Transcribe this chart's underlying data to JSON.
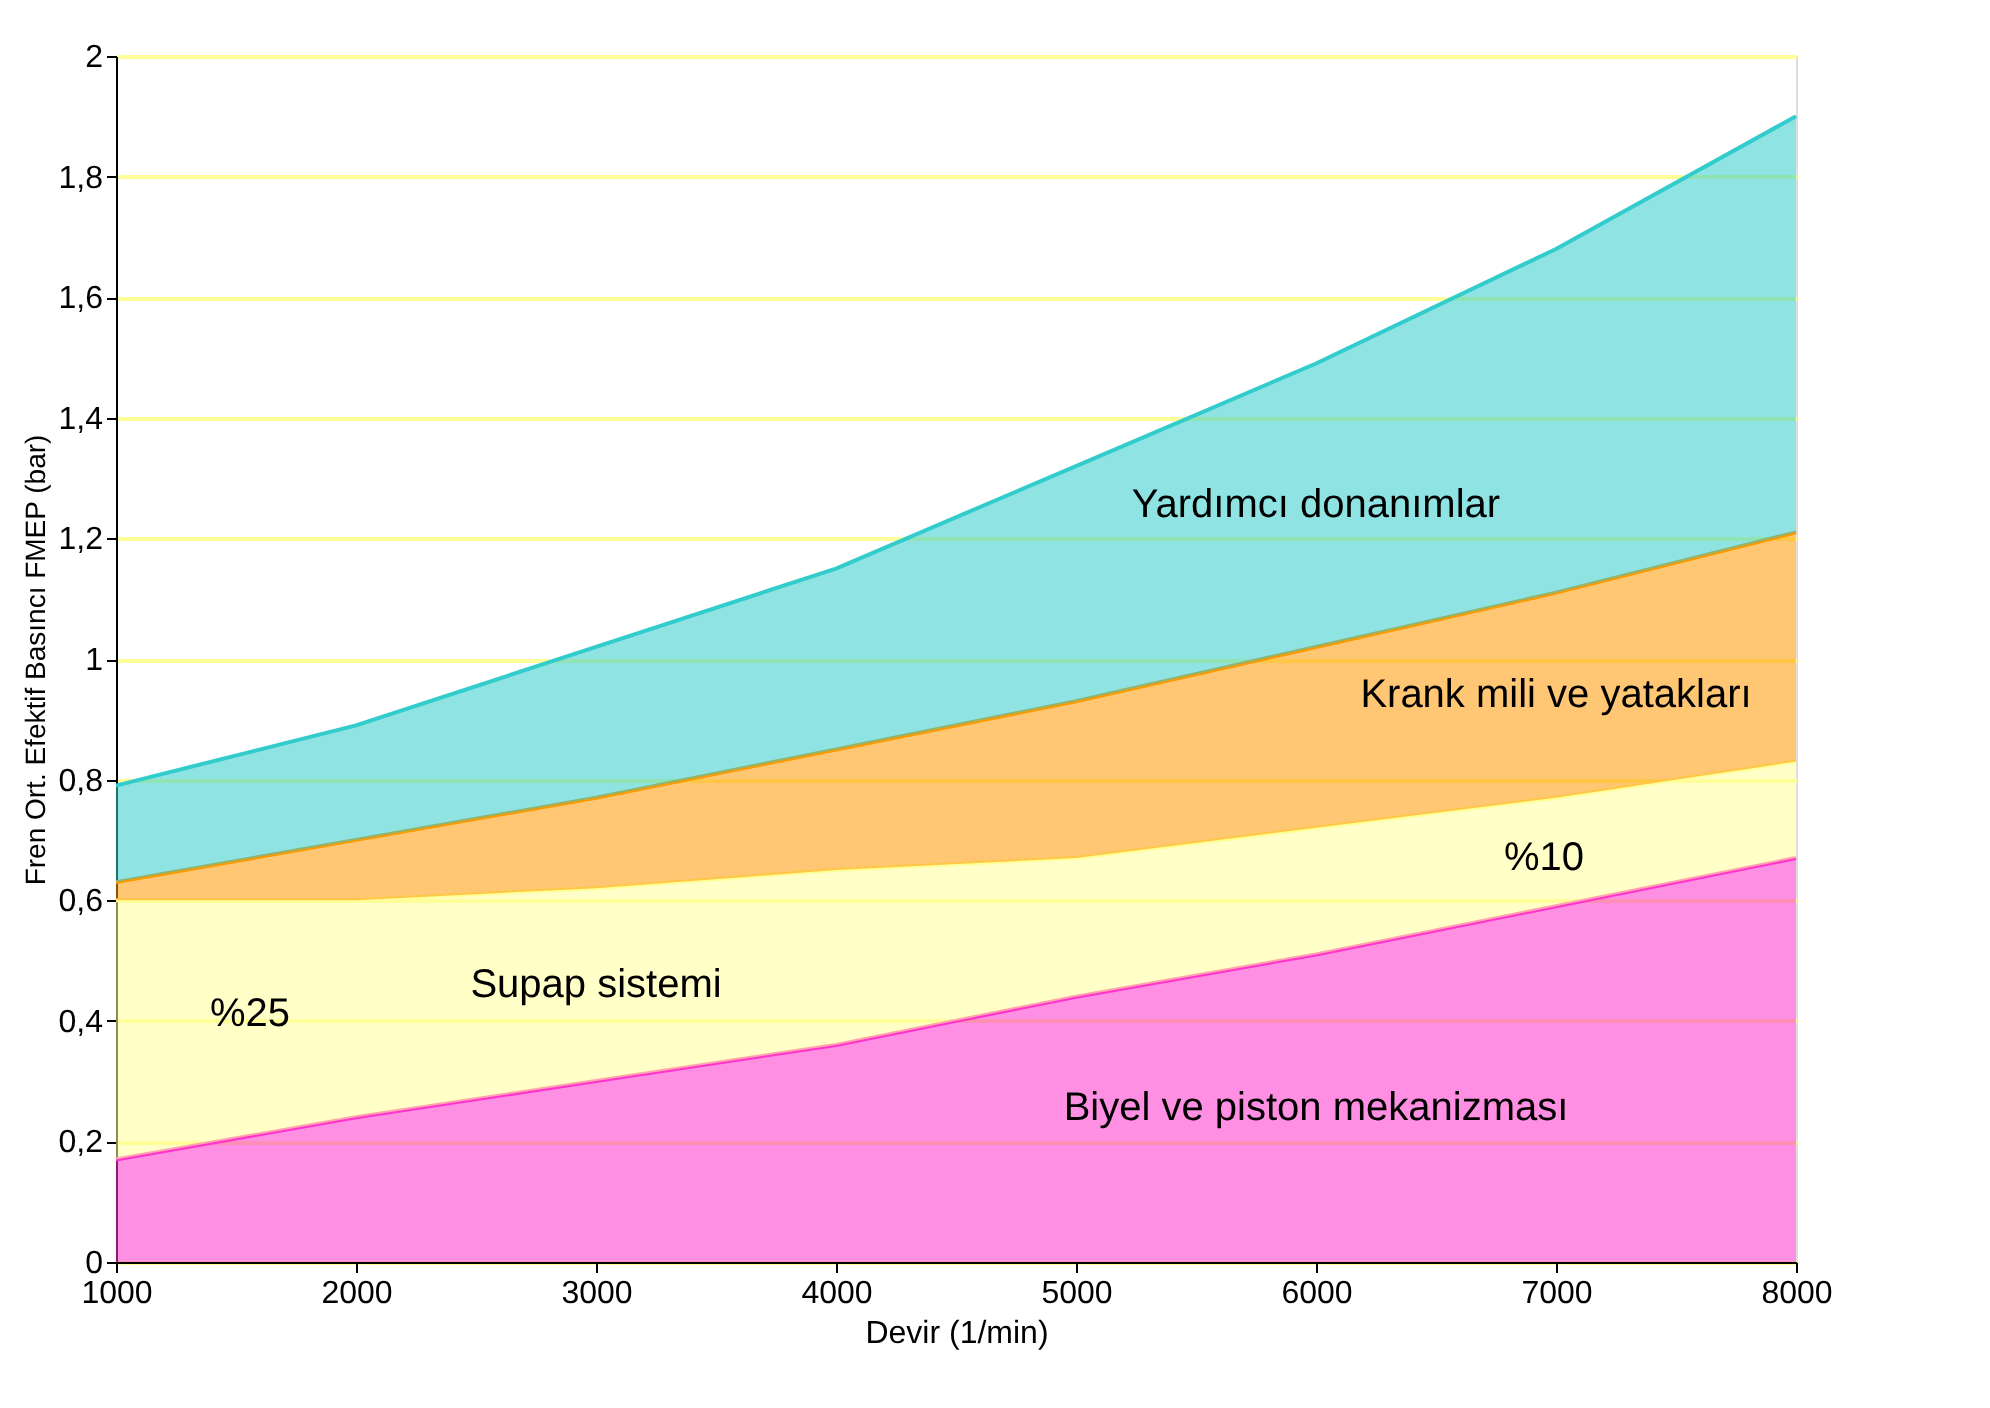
{
  "chart_data": {
    "type": "area",
    "stacked": true,
    "xlabel": "Devir (1/min)",
    "ylabel": "Fren Ort. Efektif Basıncı FMEP (bar)",
    "x": [
      1000,
      2000,
      3000,
      4000,
      5000,
      6000,
      7000,
      8000
    ],
    "series": [
      {
        "name": "Biyel ve piston mekanizması",
        "color": "#ff33cc",
        "values": [
          0.17,
          0.24,
          0.3,
          0.36,
          0.44,
          0.51,
          0.59,
          0.67
        ]
      },
      {
        "name": "Supap sistemi",
        "color": "#ffff99",
        "values": [
          0.43,
          0.36,
          0.32,
          0.29,
          0.23,
          0.21,
          0.18,
          0.16
        ]
      },
      {
        "name": "Krank mili ve yatakları",
        "color": "#ff9900",
        "values": [
          0.03,
          0.1,
          0.15,
          0.2,
          0.26,
          0.3,
          0.34,
          0.38
        ]
      },
      {
        "name": "Yardımcı donanımlar",
        "color": "#33cccc",
        "values": [
          0.16,
          0.19,
          0.25,
          0.3,
          0.39,
          0.47,
          0.57,
          0.69
        ]
      }
    ],
    "xlim": [
      1000,
      8000
    ],
    "xticks": [
      1000,
      2000,
      3000,
      4000,
      5000,
      6000,
      7000,
      8000
    ],
    "ylim": [
      0,
      2
    ],
    "yticks": [
      0,
      {
        "value": 0.2,
        "label": "0,2"
      },
      {
        "value": 0.4,
        "label": "0,4"
      },
      {
        "value": 0.6,
        "label": "0,6"
      },
      {
        "value": 0.8,
        "label": "0,8"
      },
      1,
      {
        "value": 1.2,
        "label": "1,2"
      },
      {
        "value": 1.4,
        "label": "1,4"
      },
      {
        "value": 1.6,
        "label": "1,6"
      },
      {
        "value": 1.8,
        "label": "1,8"
      },
      2
    ],
    "grid": "y",
    "annotations": [
      "%25",
      "%10"
    ]
  }
}
